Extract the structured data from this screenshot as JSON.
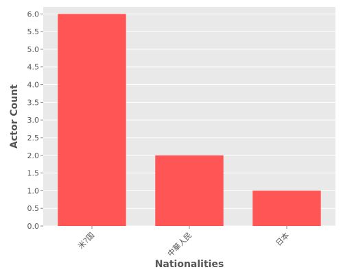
{
  "chart_data": {
    "type": "bar",
    "title": "",
    "xlabel": "Nationalities",
    "ylabel": "Actor Count",
    "categories": [
      "米?国",
      "中華人民",
      "日本"
    ],
    "values": [
      6,
      2,
      1
    ],
    "ylim": [
      0,
      6.2
    ],
    "yticks": [
      "0.0",
      "0.5",
      "1.0",
      "1.5",
      "2.0",
      "2.5",
      "3.0",
      "3.5",
      "4.0",
      "4.5",
      "5.0",
      "5.5",
      "6.0"
    ],
    "grid": true,
    "legend": "none",
    "colors": {
      "bar": "#ff5555",
      "plot_background": "#e9e9e9",
      "grid": "#ffffff",
      "text": "#555555"
    }
  }
}
